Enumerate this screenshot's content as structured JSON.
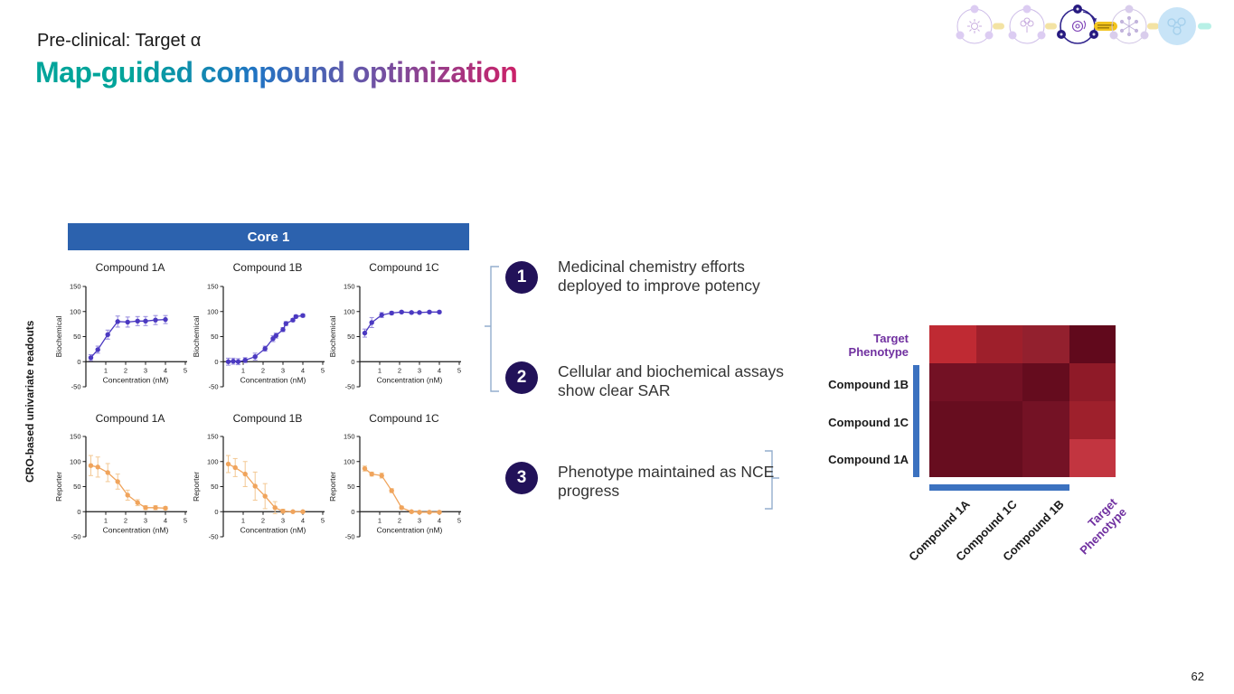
{
  "slide": {
    "kicker": "Pre-clinical: Target α",
    "title": "Map-guided compound optimization",
    "page_number": "62"
  },
  "colors": {
    "grad_1": "#00a49a",
    "grad_2": "#2173c3",
    "grad_3": "#6e53a5",
    "grad_4": "#cb2168",
    "core_header_blue": "#2c62ae",
    "group_bar_blue": "#3c72c0",
    "callout_navy": "#221259",
    "purple_label": "#7030a0",
    "bracket_blue": "#93aecd",
    "curve_purple": "#4b39c1",
    "curve_purple_error": "#9488dd",
    "curve_orange": "#f0a45c",
    "curve_orange_error": "#f3c893"
  },
  "core_panel": {
    "header": "Core 1",
    "side_label": "CRO-based univariate readouts"
  },
  "callouts": [
    {
      "number": "1",
      "text": "Medicinal chemistry efforts deployed to improve potency"
    },
    {
      "number": "2",
      "text": "Cellular and biochemical assays show clear SAR"
    },
    {
      "number": "3",
      "text": "Phenotype maintained as NCE progress"
    }
  ],
  "chart_data": [
    {
      "type": "line",
      "title": "Compound 1A",
      "xlabel": "Concentration (nM)",
      "ylabel": "Biochemical",
      "xlim": [
        0,
        5
      ],
      "ylim": [
        -50,
        150
      ],
      "xticks": [
        1,
        2,
        3,
        4,
        5
      ],
      "yticks": [
        -50,
        0,
        50,
        100,
        150
      ],
      "color": "#4b39c1",
      "error_color": "#9488dd",
      "x": [
        0.25,
        0.6,
        1.1,
        1.6,
        2.1,
        2.6,
        3.0,
        3.5,
        4.0
      ],
      "y": [
        8,
        24,
        54,
        80,
        79,
        81,
        81,
        83,
        84
      ],
      "yerr": [
        6,
        7,
        9,
        11,
        10,
        9,
        9,
        9,
        8
      ]
    },
    {
      "type": "line",
      "title": "Compound 1B",
      "xlabel": "Concentration (nM)",
      "ylabel": "Biochemical",
      "xlim": [
        0,
        5
      ],
      "ylim": [
        -50,
        150
      ],
      "xticks": [
        1,
        2,
        3,
        4,
        5
      ],
      "yticks": [
        -50,
        0,
        50,
        100,
        150
      ],
      "color": "#4b39c1",
      "error_color": "#9488dd",
      "x": [
        0.25,
        0.5,
        0.75,
        1.1,
        1.6,
        2.1,
        2.5,
        2.65,
        3.0,
        3.15,
        3.5,
        3.65,
        4.0
      ],
      "y": [
        0,
        1,
        0,
        3,
        10,
        26,
        46,
        52,
        64,
        76,
        83,
        90,
        92
      ],
      "yerr": [
        7,
        6,
        6,
        5,
        7,
        5,
        6,
        5,
        4,
        4,
        3,
        3,
        3
      ]
    },
    {
      "type": "line",
      "title": "Compound 1C",
      "xlabel": "Concentration (nM)",
      "ylabel": "Biochemical",
      "xlim": [
        0,
        5
      ],
      "ylim": [
        -50,
        150
      ],
      "xticks": [
        1,
        2,
        3,
        4,
        5
      ],
      "yticks": [
        -50,
        0,
        50,
        100,
        150
      ],
      "color": "#4b39c1",
      "error_color": "#9488dd",
      "x": [
        0.25,
        0.6,
        1.1,
        1.6,
        2.1,
        2.6,
        3.0,
        3.5,
        4.0
      ],
      "y": [
        57,
        78,
        93,
        97,
        99,
        98,
        98,
        99,
        99
      ],
      "yerr": [
        8,
        10,
        5,
        3,
        2,
        2,
        2,
        2,
        2
      ]
    },
    {
      "type": "line",
      "title": "Compound 1A",
      "xlabel": "Concentration (nM)",
      "ylabel": "Reporter",
      "xlim": [
        0,
        5
      ],
      "ylim": [
        -50,
        150
      ],
      "xticks": [
        1,
        2,
        3,
        4,
        5
      ],
      "yticks": [
        -50,
        0,
        50,
        100,
        150
      ],
      "color": "#f0a45c",
      "error_color": "#f3c893",
      "x": [
        0.25,
        0.6,
        1.1,
        1.6,
        2.1,
        2.6,
        3.0,
        3.5,
        4.0
      ],
      "y": [
        92,
        89,
        78,
        60,
        33,
        18,
        8,
        8,
        7
      ],
      "yerr": [
        20,
        20,
        18,
        15,
        10,
        6,
        4,
        4,
        3
      ]
    },
    {
      "type": "line",
      "title": "Compound 1B",
      "xlabel": "Concentration (nM)",
      "ylabel": "Reporter",
      "xlim": [
        0,
        5
      ],
      "ylim": [
        -50,
        150
      ],
      "xticks": [
        1,
        2,
        3,
        4,
        5
      ],
      "yticks": [
        -50,
        0,
        50,
        100,
        150
      ],
      "color": "#f0a45c",
      "error_color": "#f3c893",
      "x": [
        0.25,
        0.6,
        1.1,
        1.6,
        2.1,
        2.6,
        3.0,
        3.5,
        4.0
      ],
      "y": [
        95,
        88,
        75,
        51,
        31,
        8,
        1,
        0,
        0
      ],
      "yerr": [
        17,
        18,
        25,
        28,
        25,
        12,
        4,
        2,
        2
      ]
    },
    {
      "type": "line",
      "title": "Compound 1C",
      "xlabel": "Concentration (nM)",
      "ylabel": "Reporter",
      "xlim": [
        0,
        5
      ],
      "ylim": [
        -50,
        150
      ],
      "xticks": [
        1,
        2,
        3,
        4,
        5
      ],
      "yticks": [
        -50,
        0,
        50,
        100,
        150
      ],
      "color": "#f0a45c",
      "error_color": "#f3c893",
      "x": [
        0.25,
        0.6,
        1.1,
        1.6,
        2.1,
        2.6,
        3.0,
        3.5,
        4.0
      ],
      "y": [
        86,
        75,
        72,
        42,
        8,
        0,
        -1,
        -1,
        -1
      ],
      "yerr": [
        5,
        4,
        5,
        4,
        3,
        2,
        2,
        2,
        2
      ]
    },
    {
      "type": "heatmap",
      "rows": [
        "Target\nPhenotype",
        "Compound 1B",
        "Compound 1C",
        "Compound 1A"
      ],
      "cols": [
        "Compound 1A",
        "Compound 1C",
        "Compound 1B",
        "Target\nPhenotype"
      ],
      "row_label_colors": [
        "#7030a0",
        "#1a1a1a",
        "#1a1a1a",
        "#1a1a1a"
      ],
      "col_label_colors": [
        "#1a1a1a",
        "#1a1a1a",
        "#1a1a1a",
        "#7030a0"
      ],
      "cell_colors": [
        [
          "#bf2a33",
          "#9e1f2b",
          "#93202e",
          "#61091c"
        ],
        [
          "#731124",
          "#731124",
          "#650c1e",
          "#8f1a28"
        ],
        [
          "#670d1f",
          "#670d1f",
          "#741225",
          "#9e202c"
        ],
        [
          "#670d1f",
          "#670d1f",
          "#741225",
          "#c23540"
        ]
      ],
      "group_bar_color": "#3c72c0",
      "legend_position": "none",
      "grid": false
    }
  ]
}
